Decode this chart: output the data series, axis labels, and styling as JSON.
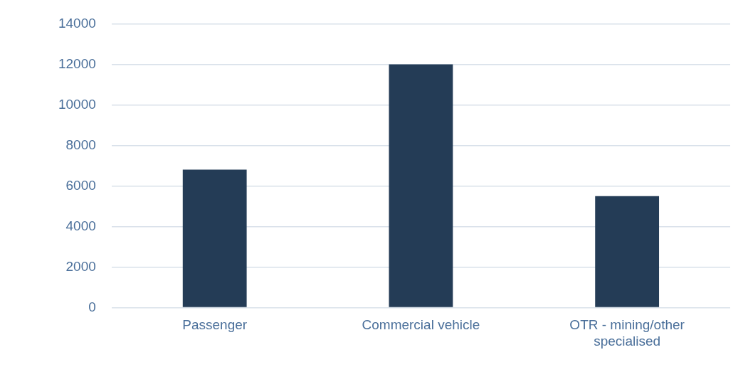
{
  "chart_data": {
    "type": "bar",
    "categories": [
      "Passenger",
      "Commercial vehicle",
      "OTR - mining/other specialised"
    ],
    "values": [
      6800,
      12000,
      5500
    ],
    "color": "#243c56",
    "ylim": [
      0,
      14000
    ],
    "yticks": [
      0,
      2000,
      4000,
      6000,
      8000,
      10000,
      12000,
      14000
    ],
    "grid": "y",
    "legend": false
  }
}
